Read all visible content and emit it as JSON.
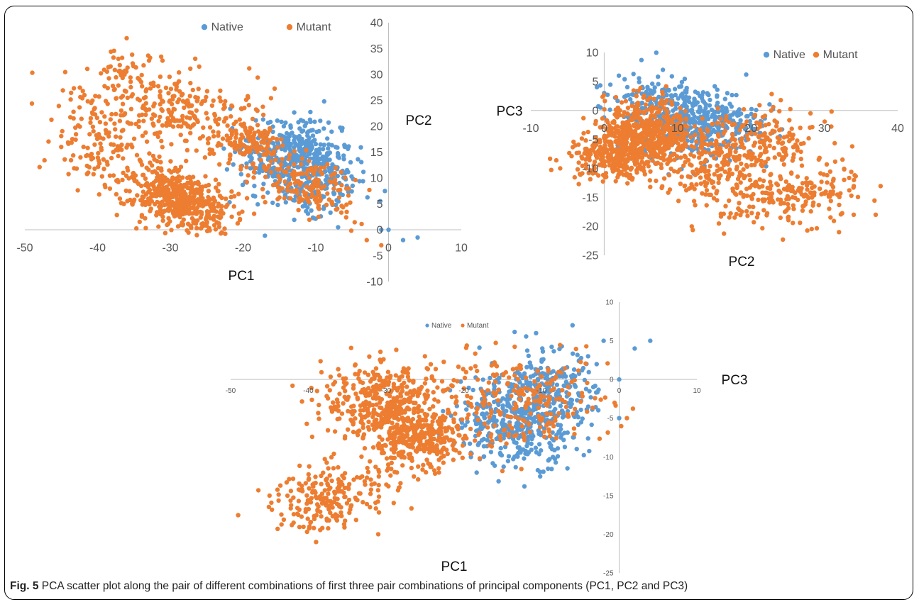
{
  "colors": {
    "native": "#5B9BD5",
    "mutant": "#ED7D31",
    "axis": "#bfbfbf",
    "frame": "#000000"
  },
  "caption": {
    "label": "Fig. 5",
    "text": " PCA scatter plot along the pair of different combinations of first three pair combinations of principal components (PC1, PC2 and PC3)"
  },
  "chart_data": [
    {
      "type": "scatter",
      "id": "pc1-pc2",
      "xlabel": "PC1",
      "ylabel": "PC2",
      "xlim": [
        -50,
        10
      ],
      "ylim": [
        -10,
        40
      ],
      "xticks": [
        -50,
        -40,
        -30,
        -20,
        -10,
        0,
        10
      ],
      "yticks": [
        -10,
        -5,
        0,
        5,
        10,
        15,
        20,
        25,
        30,
        35,
        40
      ],
      "legend": [
        "Native",
        "Mutant"
      ],
      "legend_position": "top",
      "series": [
        {
          "name": "Native",
          "clusters": [
            {
              "cx": -13,
              "cy": 14,
              "sx": 3.5,
              "sy": 3.5,
              "n": 420,
              "rot": -0.5
            },
            {
              "cx": -9,
              "cy": 8,
              "sx": 2.5,
              "sy": 3,
              "n": 120,
              "rot": -0.6
            }
          ],
          "points": [
            [
              -1,
              0
            ],
            [
              0,
              0
            ],
            [
              2,
              -2
            ],
            [
              4,
              -1.5
            ],
            [
              -0.5,
              7.5
            ]
          ]
        },
        {
          "name": "Mutant",
          "clusters": [
            {
              "cx": -29,
              "cy": 6,
              "sx": 4,
              "sy": 2.5,
              "n": 520,
              "rot": -0.55
            },
            {
              "cx": -28,
              "cy": 22,
              "sx": 6,
              "sy": 4,
              "n": 260,
              "rot": -0.35
            },
            {
              "cx": -40,
              "cy": 18,
              "sx": 3,
              "sy": 5,
              "n": 130,
              "rot": 0
            },
            {
              "cx": -37,
              "cy": 30,
              "sx": 2,
              "sy": 3,
              "n": 45,
              "rot": 0
            },
            {
              "cx": -12,
              "cy": 9,
              "sx": 4,
              "sy": 2.5,
              "n": 180,
              "rot": -0.7
            },
            {
              "cx": -19,
              "cy": 17,
              "sx": 2.5,
              "sy": 2,
              "n": 100,
              "rot": 0
            }
          ],
          "points": [
            [
              -36,
              37
            ],
            [
              -45,
              16
            ],
            [
              -3,
              -2
            ],
            [
              -1,
              -3
            ]
          ]
        }
      ]
    },
    {
      "type": "scatter",
      "id": "pc2-pc3",
      "xlabel": "PC2",
      "ylabel": "PC3",
      "xlim": [
        -10,
        40
      ],
      "ylim": [
        -25,
        10
      ],
      "xticks": [
        -10,
        0,
        10,
        20,
        30,
        40
      ],
      "yticks": [
        -25,
        -20,
        -15,
        -10,
        -5,
        0,
        5,
        10
      ],
      "legend": [
        "Native",
        "Mutant"
      ],
      "legend_position": "top-right",
      "series": [
        {
          "name": "Native",
          "clusters": [
            {
              "cx": 13,
              "cy": -2,
              "sx": 4,
              "sy": 3,
              "n": 420,
              "rot": 0
            },
            {
              "cx": 6,
              "cy": 1,
              "sx": 3,
              "sy": 2.5,
              "n": 120,
              "rot": 0
            }
          ],
          "points": [
            [
              -1,
              4
            ],
            [
              2,
              6
            ],
            [
              0,
              3
            ],
            [
              -0.5,
              0.5
            ],
            [
              8,
              7
            ]
          ]
        },
        {
          "name": "Mutant",
          "clusters": [
            {
              "cx": 6,
              "cy": -4,
              "sx": 3,
              "sy": 3,
              "n": 520,
              "rot": 0
            },
            {
              "cx": 1,
              "cy": -8,
              "sx": 3,
              "sy": 2,
              "n": 250,
              "rot": 0
            },
            {
              "cx": 20,
              "cy": -6,
              "sx": 5,
              "sy": 3,
              "n": 250,
              "rot": 0.15
            },
            {
              "cx": 25,
              "cy": -15,
              "sx": 5,
              "sy": 2.5,
              "n": 200,
              "rot": 0.2
            },
            {
              "cx": 15,
              "cy": -12,
              "sx": 3,
              "sy": 2,
              "n": 100,
              "rot": 0
            }
          ],
          "points": [
            [
              37,
              -18
            ],
            [
              34,
              -18
            ],
            [
              -6,
              -10
            ],
            [
              32,
              -21
            ]
          ]
        }
      ]
    },
    {
      "type": "scatter",
      "id": "pc1-pc3",
      "xlabel": "PC1",
      "ylabel": "PC3",
      "xlim": [
        -50,
        10
      ],
      "ylim": [
        -25,
        10
      ],
      "xticks": [
        -50,
        -40,
        -30,
        -20,
        -10,
        0,
        10
      ],
      "yticks": [
        -25,
        -20,
        -15,
        -10,
        -5,
        0,
        5,
        10
      ],
      "legend": [
        "Native",
        "Mutant"
      ],
      "legend_position": "top",
      "series": [
        {
          "name": "Native",
          "clusters": [
            {
              "cx": -13,
              "cy": -5,
              "sx": 4,
              "sy": 3,
              "n": 450,
              "rot": 0
            },
            {
              "cx": -9,
              "cy": -1,
              "sx": 3,
              "sy": 2.5,
              "n": 150,
              "rot": 0
            }
          ],
          "points": [
            [
              -6,
              7
            ],
            [
              -2,
              5
            ],
            [
              2,
              4
            ],
            [
              4,
              5
            ],
            [
              0,
              0
            ],
            [
              -4,
              3
            ],
            [
              0,
              -5
            ]
          ]
        },
        {
          "name": "Mutant",
          "clusters": [
            {
              "cx": -30,
              "cy": -3,
              "sx": 4,
              "sy": 2.5,
              "n": 400,
              "rot": 0
            },
            {
              "cx": -26,
              "cy": -8,
              "sx": 3,
              "sy": 2,
              "n": 300,
              "rot": 0
            },
            {
              "cx": -37,
              "cy": -15,
              "sx": 4,
              "sy": 2,
              "n": 220,
              "rot": 0.25
            },
            {
              "cx": -13,
              "cy": -3,
              "sx": 6,
              "sy": 3,
              "n": 250,
              "rot": 0
            }
          ],
          "points": [
            [
              -45,
              -15
            ],
            [
              -39,
              -21
            ],
            [
              -31,
              -20
            ],
            [
              1,
              -5
            ],
            [
              -25,
              3
            ]
          ]
        }
      ]
    }
  ]
}
